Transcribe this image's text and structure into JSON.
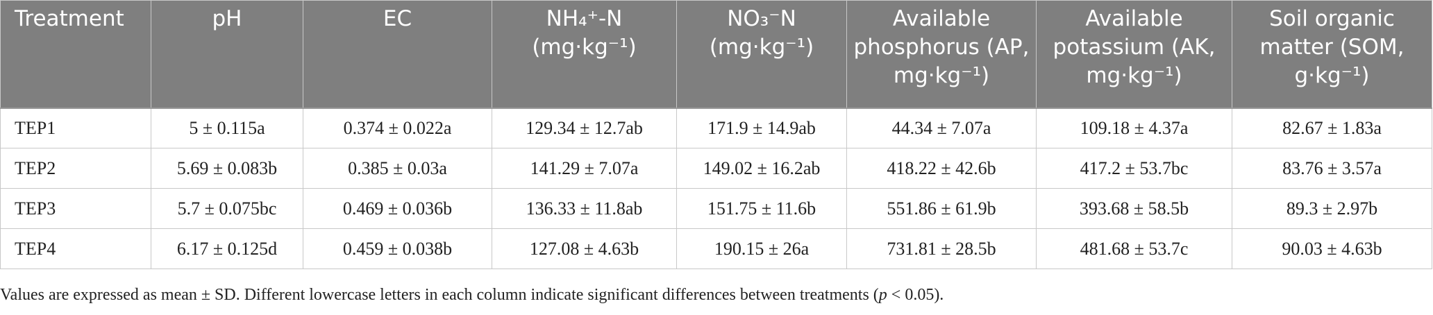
{
  "table": {
    "headers": [
      "Treatment",
      "pH",
      "EC",
      "NH₄⁺-N (mg·kg⁻¹)",
      "NO₃⁻N (mg·kg⁻¹)",
      "Available phosphorus (AP, mg·kg⁻¹)",
      "Available potassium (AK, mg·kg⁻¹)",
      "Soil organic matter (SOM, g·kg⁻¹)"
    ],
    "rows": [
      [
        "TEP1",
        "5 ± 0.115a",
        "0.374 ± 0.022a",
        "129.34 ± 12.7ab",
        "171.9 ± 14.9ab",
        "44.34 ± 7.07a",
        "109.18 ± 4.37a",
        "82.67 ± 1.83a"
      ],
      [
        "TEP2",
        "5.69 ± 0.083b",
        "0.385 ± 0.03a",
        "141.29 ± 7.07a",
        "149.02 ± 16.2ab",
        "418.22 ± 42.6b",
        "417.2 ± 53.7bc",
        "83.76 ± 3.57a"
      ],
      [
        "TEP3",
        "5.7 ± 0.075bc",
        "0.469 ± 0.036b",
        "136.33 ± 11.8ab",
        "151.75 ± 11.6b",
        "551.86 ± 61.9b",
        "393.68 ± 58.5b",
        "89.3 ± 2.97b"
      ],
      [
        "TEP4",
        "6.17 ± 0.125d",
        "0.459 ± 0.038b",
        "127.08 ± 4.63b",
        "190.15 ± 26a",
        "731.81 ± 28.5b",
        "481.68 ± 53.7c",
        "90.03 ± 4.63b"
      ]
    ]
  },
  "footnote": {
    "before": "Values are expressed as mean ± SD. Different lowercase letters in each column indicate significant differences between treatments (",
    "italic": "p",
    "after": " < 0.05)."
  }
}
